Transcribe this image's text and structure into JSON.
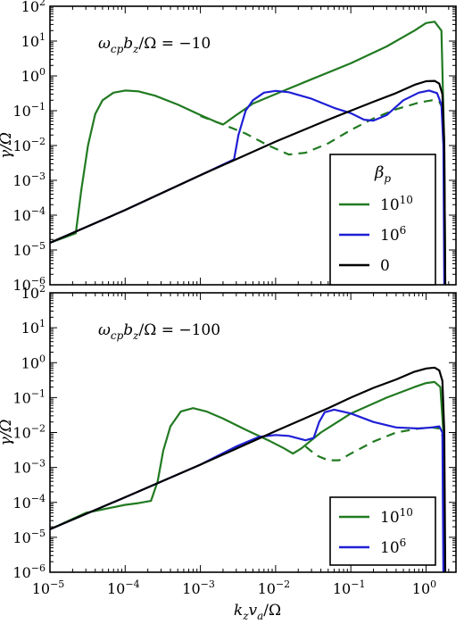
{
  "chart_data": [
    {
      "type": "line",
      "panel": "top",
      "annotation": "ω_cp b_z / Ω = −10",
      "ylabel": "γ/Ω",
      "xlabel": "",
      "xscale": "log",
      "yscale": "log",
      "xlim": [
        1e-05,
        2.5
      ],
      "ylim": [
        1e-06,
        100
      ],
      "x_ticks": [
        "10^-5",
        "10^-4",
        "10^-3",
        "10^-2",
        "10^-1",
        "10^0"
      ],
      "y_ticks": [
        "10^-6",
        "10^-5",
        "10^-4",
        "10^-3",
        "10^-2",
        "10^-1",
        "10^0",
        "10^1",
        "10^2"
      ],
      "show_x_tick_labels": false,
      "grid": false,
      "legend": {
        "title": "β_p",
        "placement": "lower-right",
        "entries": [
          {
            "label": "10^10",
            "color": "#217a21"
          },
          {
            "label": "10^6",
            "color": "#1f1fd6"
          },
          {
            "label": "0",
            "color": "#000000"
          }
        ]
      },
      "series": [
        {
          "name": "10^10",
          "color": "#217a21",
          "style": "solid",
          "points": [
            [
              1e-05,
              1.6e-05
            ],
            [
              2.2e-05,
              3e-05
            ],
            [
              2.6e-05,
              0.0005
            ],
            [
              3.2e-05,
              0.01
            ],
            [
              4e-05,
              0.08
            ],
            [
              5e-05,
              0.2
            ],
            [
              7e-05,
              0.33
            ],
            [
              0.0001,
              0.38
            ],
            [
              0.00015,
              0.36
            ],
            [
              0.00025,
              0.27
            ],
            [
              0.0005,
              0.15
            ],
            [
              0.001,
              0.075
            ],
            [
              0.0016,
              0.048
            ],
            [
              0.002,
              0.04
            ],
            [
              0.003,
              0.075
            ],
            [
              0.005,
              0.16
            ],
            [
              0.01,
              0.3
            ],
            [
              0.03,
              0.8
            ],
            [
              0.1,
              2.3
            ],
            [
              0.3,
              7
            ],
            [
              0.7,
              20
            ],
            [
              1.0,
              33
            ],
            [
              1.3,
              36
            ],
            [
              1.6,
              20
            ],
            [
              1.75,
              0.01
            ],
            [
              1.8,
              1e-06
            ]
          ]
        },
        {
          "name": "10^10 (dashed)",
          "color": "#217a21",
          "style": "dashed",
          "points": [
            [
              0.001,
              0.07
            ],
            [
              0.002,
              0.04
            ],
            [
              0.004,
              0.022
            ],
            [
              0.008,
              0.01
            ],
            [
              0.015,
              0.0055
            ],
            [
              0.025,
              0.0062
            ],
            [
              0.05,
              0.0115
            ],
            [
              0.1,
              0.028
            ],
            [
              0.2,
              0.06
            ],
            [
              0.4,
              0.11
            ],
            [
              0.8,
              0.17
            ],
            [
              1.2,
              0.2
            ],
            [
              1.5,
              0.18
            ],
            [
              1.65,
              0.12
            ]
          ]
        },
        {
          "name": "10^6",
          "color": "#1f1fd6",
          "style": "solid",
          "points": [
            [
              1e-05,
              1.6e-05
            ],
            [
              0.0001,
              0.00014
            ],
            [
              0.001,
              0.0014
            ],
            [
              0.0028,
              0.004
            ],
            [
              0.0032,
              0.02
            ],
            [
              0.004,
              0.1
            ],
            [
              0.005,
              0.2
            ],
            [
              0.007,
              0.33
            ],
            [
              0.01,
              0.37
            ],
            [
              0.015,
              0.34
            ],
            [
              0.03,
              0.22
            ],
            [
              0.06,
              0.12
            ],
            [
              0.1,
              0.085
            ],
            [
              0.15,
              0.055
            ],
            [
              0.2,
              0.052
            ],
            [
              0.3,
              0.075
            ],
            [
              0.5,
              0.2
            ],
            [
              0.8,
              0.33
            ],
            [
              1.1,
              0.38
            ],
            [
              1.4,
              0.32
            ],
            [
              1.6,
              0.15
            ],
            [
              1.7,
              0.01
            ],
            [
              1.75,
              1e-06
            ]
          ]
        },
        {
          "name": "0",
          "color": "#000000",
          "style": "solid",
          "points": [
            [
              1e-05,
              1.6e-05
            ],
            [
              0.0001,
              0.00014
            ],
            [
              0.001,
              0.0014
            ],
            [
              0.01,
              0.013
            ],
            [
              0.05,
              0.055
            ],
            [
              0.1,
              0.1
            ],
            [
              0.2,
              0.18
            ],
            [
              0.4,
              0.32
            ],
            [
              0.7,
              0.55
            ],
            [
              1.0,
              0.7
            ],
            [
              1.3,
              0.72
            ],
            [
              1.5,
              0.6
            ],
            [
              1.65,
              0.3
            ],
            [
              1.75,
              0.01
            ],
            [
              1.8,
              1e-06
            ]
          ]
        }
      ]
    },
    {
      "type": "line",
      "panel": "bottom",
      "annotation": "ω_cp b_z / Ω = −100",
      "ylabel": "γ/Ω",
      "xlabel": "k_z v_a / Ω",
      "xscale": "log",
      "yscale": "log",
      "xlim": [
        1e-05,
        2.5
      ],
      "ylim": [
        1e-06,
        100
      ],
      "x_ticks": [
        "10^-5",
        "10^-4",
        "10^-3",
        "10^-2",
        "10^-1",
        "10^0"
      ],
      "y_ticks": [
        "10^-6",
        "10^-5",
        "10^-4",
        "10^-3",
        "10^-2",
        "10^-1",
        "10^0",
        "10^1",
        "10^2"
      ],
      "show_x_tick_labels": true,
      "grid": false,
      "legend": {
        "title": "",
        "placement": "lower-right",
        "entries": [
          {
            "label": "10^10",
            "color": "#217a21"
          },
          {
            "label": "10^6",
            "color": "#1f1fd6"
          }
        ]
      },
      "series": [
        {
          "name": "10^10",
          "color": "#217a21",
          "style": "solid",
          "points": [
            [
              1e-05,
              1.7e-05
            ],
            [
              3e-05,
              5e-05
            ],
            [
              0.0001,
              8.5e-05
            ],
            [
              0.00015,
              9.5e-05
            ],
            [
              0.00022,
              0.00011
            ],
            [
              0.00027,
              0.0004
            ],
            [
              0.00032,
              0.003
            ],
            [
              0.0004,
              0.015
            ],
            [
              0.00055,
              0.04
            ],
            [
              0.0008,
              0.05
            ],
            [
              0.0012,
              0.04
            ],
            [
              0.002,
              0.025
            ],
            [
              0.004,
              0.012
            ],
            [
              0.008,
              0.006
            ],
            [
              0.013,
              0.0035
            ],
            [
              0.017,
              0.0025
            ],
            [
              0.022,
              0.0035
            ],
            [
              0.04,
              0.01
            ],
            [
              0.1,
              0.035
            ],
            [
              0.3,
              0.1
            ],
            [
              0.7,
              0.2
            ],
            [
              1.0,
              0.26
            ],
            [
              1.3,
              0.28
            ],
            [
              1.55,
              0.2
            ],
            [
              1.7,
              0.01
            ],
            [
              1.75,
              1e-06
            ]
          ]
        },
        {
          "name": "10^10 (dashed)",
          "color": "#217a21",
          "style": "dashed",
          "points": [
            [
              0.025,
              0.004
            ],
            [
              0.035,
              0.0022
            ],
            [
              0.05,
              0.0016
            ],
            [
              0.07,
              0.0016
            ],
            [
              0.1,
              0.0025
            ],
            [
              0.2,
              0.0055
            ],
            [
              0.4,
              0.01
            ],
            [
              0.8,
              0.013
            ],
            [
              1.2,
              0.014
            ],
            [
              1.5,
              0.013
            ],
            [
              1.65,
              0.008
            ]
          ]
        },
        {
          "name": "10^6",
          "color": "#1f1fd6",
          "style": "solid",
          "points": [
            [
              1e-05,
              1.7e-05
            ],
            [
              0.0001,
              0.00014
            ],
            [
              0.001,
              0.0012
            ],
            [
              0.003,
              0.004
            ],
            [
              0.006,
              0.0075
            ],
            [
              0.01,
              0.0085
            ],
            [
              0.015,
              0.008
            ],
            [
              0.025,
              0.006
            ],
            [
              0.032,
              0.007
            ],
            [
              0.038,
              0.02
            ],
            [
              0.045,
              0.038
            ],
            [
              0.06,
              0.045
            ],
            [
              0.1,
              0.035
            ],
            [
              0.2,
              0.02
            ],
            [
              0.4,
              0.014
            ],
            [
              0.8,
              0.013
            ],
            [
              1.2,
              0.014
            ],
            [
              1.5,
              0.015
            ],
            [
              1.65,
              0.01
            ],
            [
              1.7,
              1e-06
            ]
          ]
        },
        {
          "name": "0",
          "color": "#000000",
          "style": "solid",
          "points": [
            [
              1e-05,
              1.7e-05
            ],
            [
              0.0001,
              0.00014
            ],
            [
              0.001,
              0.0012
            ],
            [
              0.01,
              0.011
            ],
            [
              0.05,
              0.05
            ],
            [
              0.1,
              0.1
            ],
            [
              0.2,
              0.19
            ],
            [
              0.4,
              0.33
            ],
            [
              0.7,
              0.55
            ],
            [
              1.0,
              0.68
            ],
            [
              1.3,
              0.72
            ],
            [
              1.5,
              0.6
            ],
            [
              1.65,
              0.3
            ],
            [
              1.75,
              0.01
            ],
            [
              1.8,
              1e-06
            ]
          ]
        }
      ]
    }
  ]
}
